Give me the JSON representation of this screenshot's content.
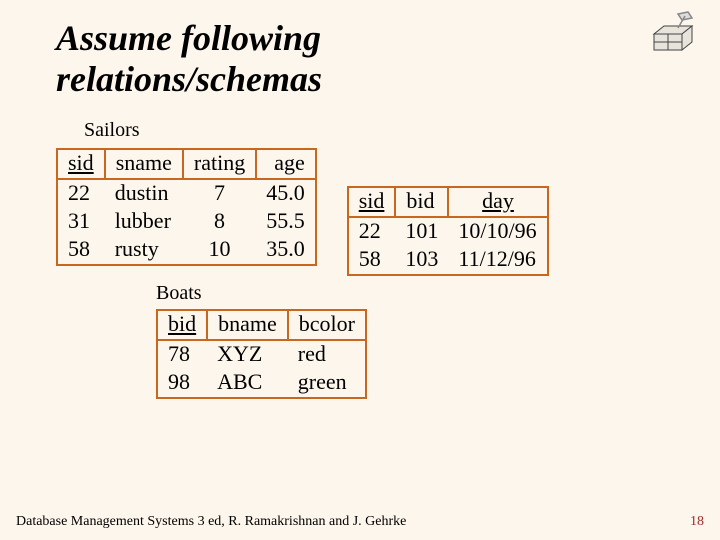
{
  "title_line1": "Assume following",
  "title_line2": "relations/schemas",
  "labels": {
    "sailors": "Sailors",
    "boats": "Boats"
  },
  "sailors": {
    "columns": [
      "sid",
      "sname",
      "rating",
      "age"
    ],
    "rows": [
      [
        "22",
        "dustin",
        "7",
        "45.0"
      ],
      [
        "31",
        "lubber",
        "8",
        "55.5"
      ],
      [
        "58",
        "rusty",
        "10",
        "35.0"
      ]
    ],
    "align": [
      "left",
      "left",
      "center",
      "right"
    ],
    "underline_header": [
      true,
      false,
      false,
      false
    ]
  },
  "reserves": {
    "columns": [
      "sid",
      "bid",
      "day"
    ],
    "rows": [
      [
        "22",
        "101",
        "10/10/96"
      ],
      [
        "58",
        "103",
        "11/12/96"
      ]
    ],
    "align": [
      "left",
      "left",
      "left"
    ],
    "underline_header": [
      true,
      false,
      true
    ],
    "header_align": [
      "left",
      "left",
      "center"
    ]
  },
  "boats": {
    "columns": [
      "bid",
      "bname",
      "bcolor"
    ],
    "rows": [
      [
        "78",
        "XYZ",
        "red"
      ],
      [
        "98",
        "ABC",
        "green"
      ]
    ],
    "align": [
      "left",
      "left",
      "left"
    ],
    "underline_header": [
      true,
      false,
      false
    ],
    "header_align": [
      "left",
      "left",
      "center"
    ]
  },
  "footer": {
    "text": "Database Management Systems 3 ed, R. Ramakrishnan and J. Gehrke",
    "page": "18"
  },
  "colors": {
    "background": "#fdf6ec",
    "table_border": "#c86820",
    "pagenum": "#a52a2a"
  }
}
